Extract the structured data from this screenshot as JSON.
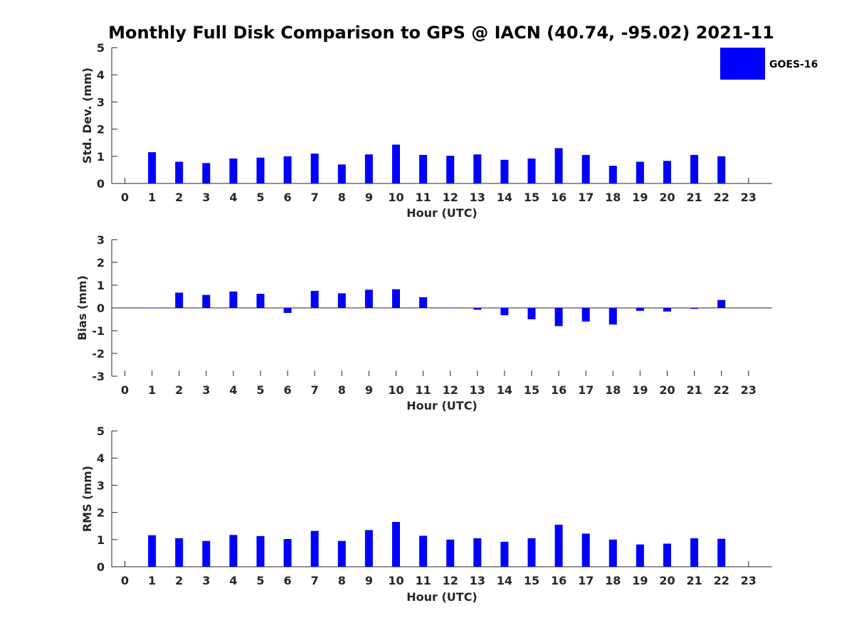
{
  "chart_data": {
    "type": "bar",
    "title": "Monthly Full Disk Comparison to GPS @ IACN (40.74, -95.02) 2021-11",
    "legend": {
      "entries": [
        "GOES-16"
      ],
      "placement": "top-right"
    },
    "colors": {
      "series": "#0000ff",
      "axis": "#262626",
      "text": "#262626"
    },
    "categories": [
      "0",
      "1",
      "2",
      "3",
      "4",
      "5",
      "6",
      "7",
      "8",
      "9",
      "10",
      "11",
      "12",
      "13",
      "14",
      "15",
      "16",
      "17",
      "18",
      "19",
      "20",
      "21",
      "22",
      "23"
    ],
    "panels": [
      {
        "name": "stddev",
        "ylabel": "Std. Dev. (mm)",
        "xlabel": "Hour (UTC)",
        "ylim": [
          0,
          5
        ],
        "yticks": [
          0,
          1,
          2,
          3,
          4,
          5
        ],
        "series": [
          {
            "name": "GOES-16",
            "values": [
              null,
              1.15,
              0.8,
              0.75,
              0.92,
              0.95,
              1.0,
              1.1,
              0.7,
              1.07,
              1.43,
              1.05,
              1.02,
              1.07,
              0.87,
              0.92,
              1.3,
              1.05,
              0.65,
              0.8,
              0.83,
              1.05,
              1.0,
              null
            ]
          }
        ]
      },
      {
        "name": "bias",
        "ylabel": "Bias (mm)",
        "xlabel": "Hour (UTC)",
        "ylim": [
          -3,
          3
        ],
        "yticks": [
          -3,
          -2,
          -1,
          0,
          1,
          2,
          3
        ],
        "series": [
          {
            "name": "GOES-16",
            "values": [
              null,
              0.0,
              0.67,
              0.57,
              0.72,
              0.62,
              -0.22,
              0.75,
              0.64,
              0.8,
              0.82,
              0.47,
              0.0,
              -0.08,
              -0.32,
              -0.5,
              -0.8,
              -0.6,
              -0.73,
              -0.13,
              -0.16,
              -0.04,
              0.35,
              null
            ]
          }
        ]
      },
      {
        "name": "rms",
        "ylabel": "RMS (mm)",
        "xlabel": "Hour (UTC)",
        "ylim": [
          0,
          5
        ],
        "yticks": [
          0,
          1,
          2,
          3,
          4,
          5
        ],
        "series": [
          {
            "name": "GOES-16",
            "values": [
              null,
              1.16,
              1.05,
              0.95,
              1.17,
              1.13,
              1.02,
              1.32,
              0.95,
              1.35,
              1.65,
              1.14,
              1.0,
              1.05,
              0.92,
              1.05,
              1.55,
              1.22,
              1.0,
              0.82,
              0.85,
              1.05,
              1.03,
              null
            ]
          }
        ]
      }
    ]
  }
}
